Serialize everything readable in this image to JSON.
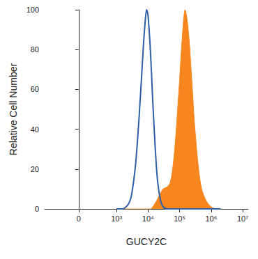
{
  "chart_data": {
    "type": "line",
    "x_label": "GUCY2C",
    "y_label": "Relative Cell Number",
    "log": "x",
    "grid": false,
    "xlim": [
      -750,
      15000000
    ],
    "xticks": [
      0,
      {
        "value": 1000,
        "label": "10³"
      },
      {
        "value": 10000,
        "label": "10⁴"
      },
      {
        "value": 100000,
        "label": "10⁵"
      },
      {
        "value": 1000000,
        "label": "10⁶"
      },
      {
        "value": 10000000,
        "label": "10⁷"
      }
    ],
    "ylim": [
      0,
      100
    ],
    "yticks": [
      0,
      20,
      40,
      60,
      80,
      100
    ],
    "x": [
      1000,
      1500,
      2000,
      2500,
      3000,
      4000,
      5000,
      6000,
      7000,
      8000,
      9000,
      10000,
      12000,
      14000,
      17000,
      20000,
      25000,
      30000,
      40000,
      50000,
      60000,
      70000,
      80000,
      100000,
      120000,
      150000,
      170000,
      200000,
      250000,
      300000,
      400000,
      500000,
      700000,
      1000000,
      1500000,
      2000000
    ],
    "series": [
      {
        "type": "area",
        "color": "#f7861e",
        "values": [
          0,
          0,
          0,
          0,
          0,
          0,
          0,
          0,
          0,
          0,
          0,
          0,
          0,
          1,
          3,
          5,
          8,
          10,
          11,
          13,
          20,
          30,
          42,
          65,
          85,
          100,
          96,
          85,
          62,
          42,
          20,
          10,
          4,
          1,
          0,
          0
        ]
      },
      {
        "type": "line",
        "color": "#2e5fa8",
        "values": [
          0,
          0,
          1,
          3,
          7,
          22,
          42,
          62,
          80,
          93,
          100,
          97,
          78,
          55,
          30,
          14,
          4,
          1,
          0,
          0,
          0,
          0,
          0,
          0,
          0,
          0,
          0,
          0,
          0,
          0,
          0,
          0,
          0,
          0,
          0,
          0
        ]
      }
    ]
  }
}
